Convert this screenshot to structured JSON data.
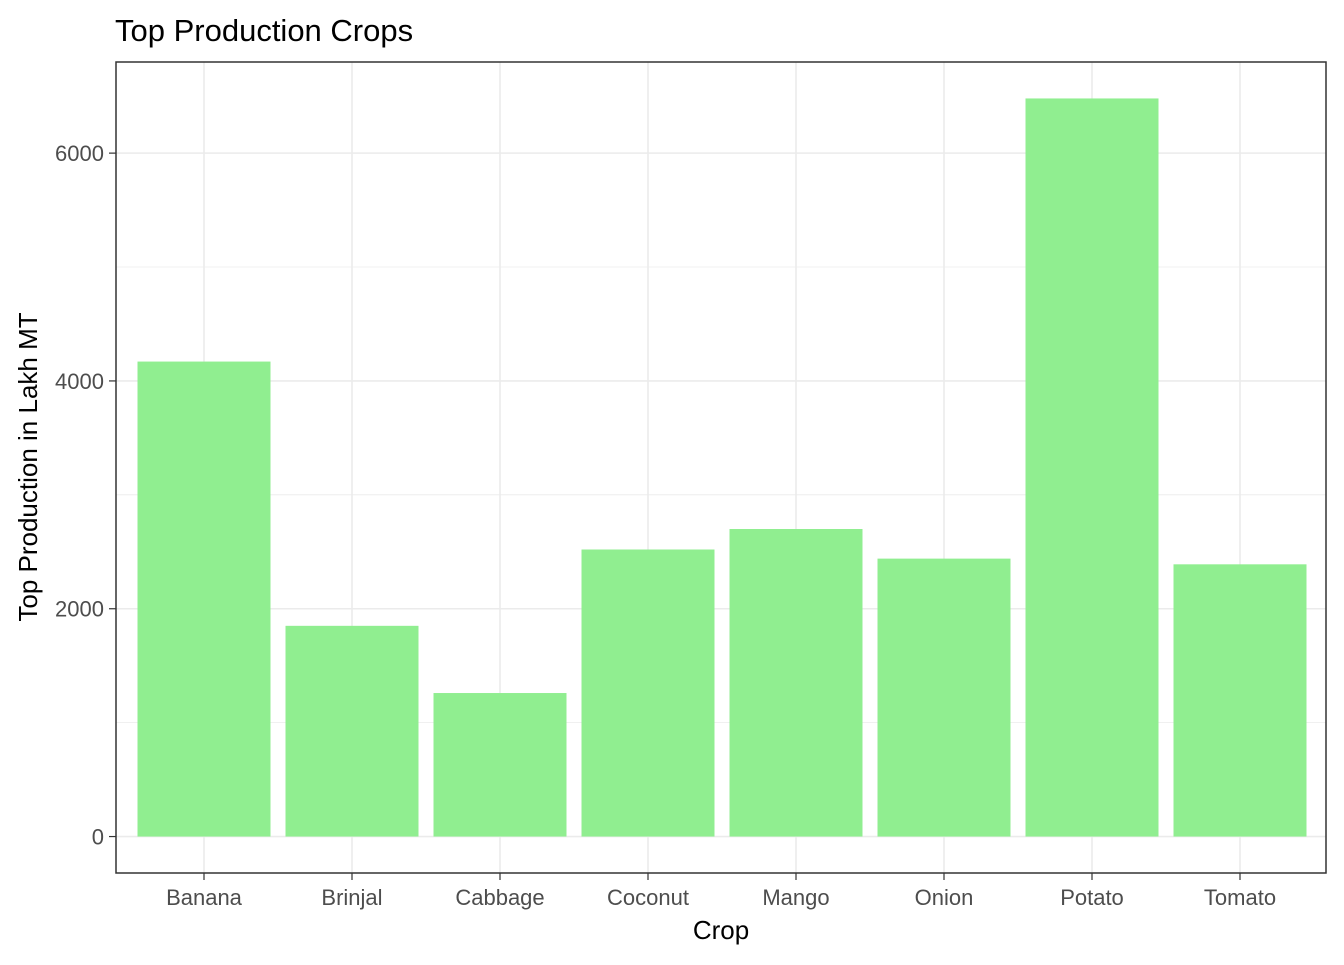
{
  "chart_data": {
    "type": "bar",
    "title": "Top Production Crops",
    "xlabel": "Crop",
    "ylabel": "Top Production in Lakh MT",
    "categories": [
      "Banana",
      "Brinjal",
      "Cabbage",
      "Coconut",
      "Mango",
      "Onion",
      "Potato",
      "Tomato"
    ],
    "values": [
      4170,
      1850,
      1260,
      2520,
      2700,
      2440,
      6480,
      2390
    ],
    "ylim": [
      -320,
      6800
    ],
    "yticks": [
      0,
      2000,
      4000,
      6000
    ],
    "ytick_labels": [
      "0",
      "2000",
      "4000",
      "6000"
    ],
    "bar_color": "#90ee90",
    "grid": true,
    "legend": false
  }
}
